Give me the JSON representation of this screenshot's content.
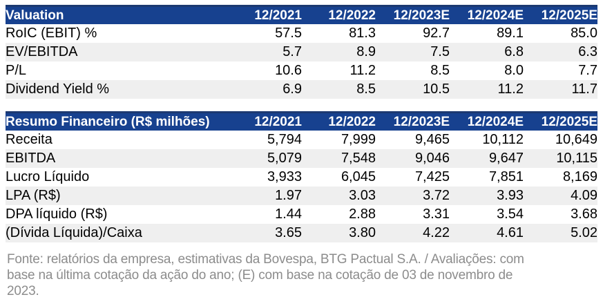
{
  "colors": {
    "header_bg": "#17418F",
    "header_top_border": "#1C3971",
    "header_text": "#FFFFFF",
    "row_alt_bg": "#EFEFEF",
    "footnote_text": "#8C8C8C"
  },
  "tables": [
    {
      "title": "Valuation",
      "columns": [
        "12/2021",
        "12/2022",
        "12/2023E",
        "12/2024E",
        "12/2025E"
      ],
      "rows": [
        {
          "label": "RoIC (EBIT) %",
          "values": [
            "57.5",
            "81.3",
            "92.7",
            "89.1",
            "85.0"
          ]
        },
        {
          "label": "EV/EBITDA",
          "values": [
            "5.7",
            "8.9",
            "7.5",
            "6.8",
            "6.3"
          ]
        },
        {
          "label": "P/L",
          "values": [
            "10.6",
            "11.2",
            "8.5",
            "8.0",
            "7.7"
          ]
        },
        {
          "label": "Dividend Yield %",
          "values": [
            "6.9",
            "8.5",
            "10.5",
            "11.2",
            "11.7"
          ]
        }
      ]
    },
    {
      "title": "Resumo Financeiro (R$ milhões)",
      "columns": [
        "12/2021",
        "12/2022",
        "12/2023E",
        "12/2024E",
        "12/2025E"
      ],
      "rows": [
        {
          "label": "Receita",
          "values": [
            "5,794",
            "7,999",
            "9,465",
            "10,112",
            "10,649"
          ]
        },
        {
          "label": "EBITDA",
          "values": [
            "5,079",
            "7,548",
            "9,046",
            "9,647",
            "10,115"
          ]
        },
        {
          "label": "Lucro Líquido",
          "values": [
            "3,933",
            "6,045",
            "7,425",
            "7,851",
            "8,169"
          ]
        },
        {
          "label": "LPA (R$)",
          "values": [
            "1.97",
            "3.03",
            "3.72",
            "3.93",
            "4.09"
          ]
        },
        {
          "label": "DPA líquido (R$)",
          "values": [
            "1.44",
            "2.88",
            "3.31",
            "3.54",
            "3.68"
          ]
        },
        {
          "label": "(Dívida Líquida)/Caixa",
          "values": [
            "3.65",
            "3.80",
            "4.22",
            "4.61",
            "5.02"
          ]
        }
      ]
    }
  ],
  "footnote": {
    "lines": [
      "Fonte: relatórios da empresa, estimativas da Bovespa, BTG Pactual S.A.  / Avaliações: com",
      "base na última cotação da ação do ano; (E) com base na cotação de 03 de novembro de",
      "2023."
    ]
  }
}
